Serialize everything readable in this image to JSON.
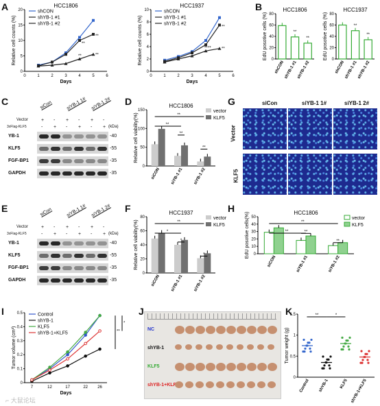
{
  "panels": {
    "A": {
      "letter": "A"
    },
    "B": {
      "letter": "B"
    },
    "C": {
      "letter": "C"
    },
    "D": {
      "letter": "D"
    },
    "E": {
      "letter": "E"
    },
    "F": {
      "letter": "F"
    },
    "G": {
      "letter": "G"
    },
    "H": {
      "letter": "H"
    },
    "I": {
      "letter": "I"
    },
    "J": {
      "letter": "J"
    },
    "K": {
      "letter": "K"
    }
  },
  "chart_data": [
    {
      "id": "A1",
      "type": "line",
      "title": "HCC1806",
      "xlabel": "Days",
      "ylabel": "Relative cell counts (%)",
      "x": [
        1,
        2,
        3,
        4,
        5
      ],
      "ylim": [
        0,
        20
      ],
      "series": [
        {
          "name": "shCON",
          "values": [
            2,
            3,
            6,
            11,
            16.5
          ],
          "color": "#3366cc",
          "marker": "square"
        },
        {
          "name": "shYB-1 #1",
          "values": [
            1.8,
            3,
            5.5,
            10,
            12
          ],
          "color": "#222222",
          "marker": "square"
        },
        {
          "name": "shYB-1 #2",
          "values": [
            1.7,
            2,
            2.5,
            4,
            5.5
          ],
          "color": "#222222",
          "marker": "triangle"
        }
      ],
      "annotations": [
        "**",
        "**",
        "**",
        "**"
      ]
    },
    {
      "id": "A2",
      "type": "line",
      "title": "HCC1937",
      "xlabel": "Days",
      "ylabel": "Relative cell counts (%)",
      "x": [
        1,
        2,
        3,
        4,
        5
      ],
      "ylim": [
        0,
        10
      ],
      "series": [
        {
          "name": "shCON",
          "values": [
            1.8,
            2.4,
            3.2,
            5,
            8.7
          ],
          "color": "#3366cc",
          "marker": "square"
        },
        {
          "name": "shYB-1 #1",
          "values": [
            1.6,
            2.2,
            3,
            4.3,
            7.5
          ],
          "color": "#222222",
          "marker": "square"
        },
        {
          "name": "shYB-1 #2",
          "values": [
            1.5,
            2,
            2.5,
            3.3,
            3.7
          ],
          "color": "#222222",
          "marker": "triangle"
        }
      ],
      "annotations": [
        "**",
        "**",
        "**",
        "**"
      ]
    },
    {
      "id": "B1",
      "type": "bar",
      "title": "HCC1806",
      "ylabel": "EdU posotive cells (%)",
      "ylim": [
        0,
        80
      ],
      "categories": [
        "shCON",
        "shYB-1 #1",
        "shYB-1 #2"
      ],
      "values": [
        59,
        39,
        28
      ],
      "annotations": [
        "",
        "**",
        "**"
      ]
    },
    {
      "id": "B2",
      "type": "bar",
      "title": "HCC1937",
      "ylabel": "EdU posotive cells (%)",
      "ylim": [
        0,
        80
      ],
      "categories": [
        "shCON",
        "shYB-1 #1",
        "shYB-1 #2"
      ],
      "values": [
        60,
        50,
        34
      ],
      "annotations": [
        "",
        "**",
        "**"
      ]
    },
    {
      "id": "D",
      "type": "bar",
      "title": "HCC1806",
      "ylabel": "Relative cell viability(%)",
      "ylim": [
        0,
        150
      ],
      "categories": [
        "siCON",
        "siYB-1 #1",
        "siYB-1 #2"
      ],
      "series": [
        {
          "name": "vector",
          "values": [
            58,
            27,
            12
          ],
          "color": "#cccccc"
        },
        {
          "name": "KLF5",
          "values": [
            99,
            55,
            25
          ],
          "color": "#707070"
        }
      ],
      "annotations": [
        "**",
        "**",
        "**",
        "**",
        "**"
      ]
    },
    {
      "id": "F",
      "type": "bar",
      "title": "HCC1937",
      "ylabel": "Relative cell viability(%)",
      "ylim": [
        0,
        80
      ],
      "categories": [
        "siCON",
        "siYB-1 #1",
        "siYB-1 #2"
      ],
      "series": [
        {
          "name": "vector",
          "values": [
            49,
            40,
            21
          ],
          "color": "#cccccc"
        },
        {
          "name": "KLF5",
          "values": [
            57,
            47,
            28
          ],
          "color": "#707070"
        }
      ],
      "annotations": [
        "**",
        "*",
        "*",
        "*"
      ]
    },
    {
      "id": "H",
      "type": "bar",
      "title": "HCC1806",
      "ylabel": "EdU posotive cells(%)",
      "ylim": [
        0,
        50
      ],
      "categories": [
        "siCON",
        "siYB-1 #1",
        "siYB-1 #2"
      ],
      "series": [
        {
          "name": "vector",
          "values": [
            29,
            18,
            11
          ],
          "color": "#ffffff"
        },
        {
          "name": "KLF5",
          "values": [
            35,
            24,
            15
          ],
          "color": "#8fd18f"
        }
      ],
      "annotations": [
        "**",
        "**",
        "**",
        "**"
      ]
    },
    {
      "id": "I",
      "type": "line",
      "xlabel": "Days",
      "ylabel": "Tumor volume (cm³)",
      "x": [
        7,
        12,
        17,
        22,
        26
      ],
      "ylim": [
        0,
        0.5
      ],
      "series": [
        {
          "name": "Control",
          "values": [
            0.02,
            0.1,
            0.2,
            0.34,
            0.48
          ],
          "color": "#3355cc"
        },
        {
          "name": "shYB-1",
          "values": [
            0.01,
            0.07,
            0.12,
            0.19,
            0.24
          ],
          "color": "#111111"
        },
        {
          "name": "KLF5",
          "values": [
            0.02,
            0.11,
            0.22,
            0.36,
            0.48
          ],
          "color": "#44aa44"
        },
        {
          "name": "shYB-1+KLF5",
          "values": [
            0.02,
            0.09,
            0.17,
            0.28,
            0.37
          ],
          "color": "#dd3333"
        }
      ],
      "annotations": [
        "**",
        "*"
      ]
    },
    {
      "id": "K",
      "type": "scatter",
      "ylabel": "Tumor weight (g)",
      "ylim": [
        0,
        1.5
      ],
      "categories": [
        "Control",
        "shYB-1",
        "KLF5",
        "shYB-1+KLF5"
      ],
      "means": [
        0.75,
        0.35,
        0.8,
        0.48
      ],
      "colors": [
        "#3366cc",
        "#111111",
        "#44aa44",
        "#dd3333"
      ],
      "annotations": [
        "**",
        "*"
      ]
    }
  ],
  "C": {
    "header": {
      "siCon": "siCon",
      "siYB1_1": "siYB-1 1#",
      "siYB1_2": "siYB-1 2#",
      "vector": "Vector",
      "flag": "3xFlag-KLF5",
      "kda": "(kDa)",
      "signs": [
        "-",
        "+",
        "-",
        "+",
        "-",
        "+"
      ]
    },
    "rows": [
      {
        "name": "YB-1",
        "kda": "-40"
      },
      {
        "name": "KLF5",
        "kda": "-55"
      },
      {
        "name": "FGF-BP1",
        "kda": "-35"
      },
      {
        "name": "GAPDH",
        "kda": "-35"
      }
    ]
  },
  "E": {
    "header": {
      "siCon": "siCon",
      "siYB1_1": "siYB-1 1#",
      "siYB1_2": "siYB-1 2#",
      "vector": "Vector",
      "flag": "3xFlag-KLF5",
      "kda": "(kDa)",
      "signs": [
        "-",
        "+",
        "-",
        "+",
        "-",
        "+"
      ]
    },
    "rows": [
      {
        "name": "YB-1",
        "kda": "-40"
      },
      {
        "name": "KLF5",
        "kda": "-55"
      },
      {
        "name": "FGF-BP1",
        "kda": "-35"
      },
      {
        "name": "GAPDH",
        "kda": "-35"
      }
    ]
  },
  "G": {
    "cols": [
      "siCon",
      "siYB-1  1#",
      "siYB-1  2#"
    ],
    "rows": [
      "Vector",
      "KLF5"
    ]
  },
  "J": {
    "labels": [
      "NC",
      "shYB-1",
      "KLF5",
      "shYB-1+KLF5"
    ],
    "label_colors": [
      "#2233cc",
      "#111111",
      "#33aa33",
      "#dd2222"
    ]
  },
  "legends": {
    "A": [
      "shCON",
      "shYB-1 #1",
      "shYB-1 #2"
    ],
    "D": [
      "vector",
      "KLF5"
    ],
    "I": [
      "Control",
      "shYB-1",
      "KLF5",
      "shYB-1+KLF5"
    ]
  }
}
